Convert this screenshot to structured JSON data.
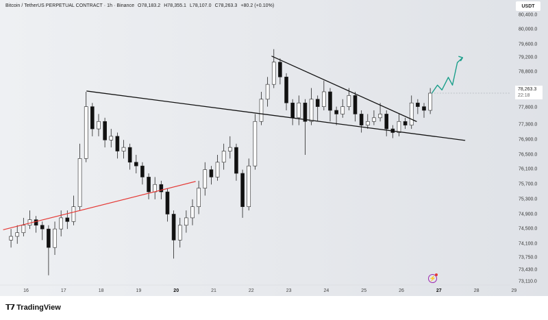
{
  "header": {
    "symbol": "Bitcoin / TetherUS PERPETUAL CONTRACT · 1h · Binance",
    "open": "O78,183.2",
    "high": "H78,355.1",
    "low": "L78,107.0",
    "close": "C78,263.3",
    "change": "+80.2 (+0.10%)"
  },
  "currency": "USDT",
  "last_price": {
    "value": "78,263.3",
    "countdown": "22:18"
  },
  "footer": {
    "logo_mark": "TV",
    "logo_text": "TradingView"
  },
  "icons": {
    "alert": "lightning-icon"
  },
  "colors": {
    "up_candle": "#ffffff",
    "down_candle": "#111111",
    "trendline": "#111111",
    "support_line": "#e53935",
    "projection": "#1a9e8a",
    "alert": "#9c27b0"
  },
  "chart_data": {
    "type": "candlestick",
    "interval": "1h",
    "xaxis": {
      "ticks": [
        "16",
        "17",
        "18",
        "19",
        "20",
        "21",
        "22",
        "23",
        "24",
        "25",
        "26",
        "27",
        "28",
        "29"
      ],
      "bold": [
        "20",
        "27"
      ],
      "range_days": [
        15.4,
        29.8
      ]
    },
    "yaxis": {
      "ticks": [
        "80,400.0",
        "80,000.0",
        "79,600.0",
        "79,200.0",
        "78,800.0",
        "77,800.0",
        "77,300.0",
        "76,900.0",
        "76,500.0",
        "76,100.0",
        "75,700.0",
        "75,300.0",
        "74,900.0",
        "74,500.0",
        "74,100.0",
        "73,750.0",
        "73,430.0",
        "73,110.0"
      ],
      "range": [
        72900,
        80800
      ]
    },
    "grid": false,
    "candles_start_day": 15.6,
    "candles_step_days": 0.1667,
    "candles_ohlc": [
      [
        74300,
        74600,
        74100,
        74400
      ],
      [
        74400,
        74700,
        74200,
        74500
      ],
      [
        74500,
        74900,
        74400,
        74700
      ],
      [
        74700,
        75100,
        74600,
        74850
      ],
      [
        74850,
        74950,
        74500,
        74700
      ],
      [
        74700,
        74800,
        74300,
        74600
      ],
      [
        74600,
        74700,
        73350,
        74100
      ],
      [
        74100,
        74800,
        73900,
        74600
      ],
      [
        74600,
        75100,
        74400,
        74900
      ],
      [
        74900,
        75100,
        74600,
        74800
      ],
      [
        74800,
        75500,
        74700,
        75200
      ],
      [
        75200,
        76900,
        75100,
        76500
      ],
      [
        76500,
        78300,
        76400,
        77900
      ],
      [
        77900,
        78000,
        77100,
        77300
      ],
      [
        77300,
        77700,
        77100,
        77500
      ],
      [
        77500,
        77600,
        76800,
        77000
      ],
      [
        77000,
        77300,
        76800,
        77100
      ],
      [
        77100,
        77200,
        76500,
        76700
      ],
      [
        76700,
        77000,
        76500,
        76800
      ],
      [
        76800,
        76900,
        76200,
        76400
      ],
      [
        76400,
        76600,
        76100,
        76300
      ],
      [
        76300,
        76400,
        75800,
        76000
      ],
      [
        76000,
        76100,
        75400,
        75600
      ],
      [
        75600,
        76000,
        75400,
        75800
      ],
      [
        75800,
        75900,
        75400,
        75600
      ],
      [
        75600,
        75700,
        74800,
        75000
      ],
      [
        75000,
        75100,
        73800,
        74300
      ],
      [
        74300,
        74900,
        74100,
        74700
      ],
      [
        74700,
        75100,
        74500,
        74900
      ],
      [
        74900,
        75400,
        74700,
        75200
      ],
      [
        75200,
        75900,
        75000,
        75700
      ],
      [
        75700,
        76400,
        75500,
        76200
      ],
      [
        76200,
        76300,
        75800,
        76000
      ],
      [
        76000,
        76600,
        75900,
        76400
      ],
      [
        76400,
        76900,
        76200,
        76700
      ],
      [
        76700,
        77100,
        76500,
        76800
      ],
      [
        76800,
        76900,
        75900,
        76100
      ],
      [
        76100,
        76200,
        74900,
        75200
      ],
      [
        75200,
        76500,
        75100,
        76300
      ],
      [
        76300,
        77700,
        76200,
        77500
      ],
      [
        77500,
        78300,
        77400,
        78100
      ],
      [
        78100,
        78700,
        77900,
        78500
      ],
      [
        78500,
        79450,
        78400,
        79100
      ],
      [
        79100,
        79200,
        78500,
        78700
      ],
      [
        78700,
        78800,
        77800,
        78000
      ],
      [
        78000,
        78100,
        77400,
        77600
      ],
      [
        77600,
        78200,
        77400,
        78000
      ],
      [
        78000,
        78100,
        76600,
        77500
      ],
      [
        77500,
        78400,
        77400,
        78100
      ],
      [
        78100,
        78200,
        77500,
        77900
      ],
      [
        77900,
        78600,
        77800,
        78300
      ],
      [
        78300,
        78400,
        77500,
        77800
      ],
      [
        77800,
        77900,
        77400,
        77700
      ],
      [
        77700,
        78100,
        77600,
        77900
      ],
      [
        77900,
        78400,
        77800,
        78200
      ],
      [
        78200,
        78300,
        77500,
        77700
      ],
      [
        77700,
        77800,
        77200,
        77400
      ],
      [
        77400,
        77700,
        77300,
        77500
      ],
      [
        77500,
        77800,
        77400,
        77600
      ],
      [
        77600,
        78000,
        77500,
        77700
      ],
      [
        77700,
        77800,
        77100,
        77300
      ],
      [
        77300,
        77400,
        77050,
        77200
      ],
      [
        77200,
        77700,
        77100,
        77500
      ],
      [
        77500,
        77600,
        77300,
        77400
      ],
      [
        77400,
        78200,
        77300,
        78000
      ],
      [
        78000,
        78100,
        77700,
        77900
      ],
      [
        77900,
        78000,
        77600,
        77800
      ],
      [
        77800,
        78400,
        77700,
        78263
      ]
    ],
    "drawings": {
      "support_trendline": [
        [
          17.62,
          78320
        ],
        [
          27.69,
          76990
        ]
      ],
      "wedge_upper_line": [
        [
          22.55,
          79260
        ],
        [
          26.4,
          77500
        ]
      ],
      "red_trendline": [
        [
          15.4,
          74580
        ],
        [
          20.51,
          75880
        ]
      ],
      "projection_arrow": [
        [
          26.81,
          78260
        ],
        [
          26.96,
          78480
        ],
        [
          27.08,
          78350
        ],
        [
          27.25,
          78690
        ],
        [
          27.36,
          78480
        ],
        [
          27.49,
          79090
        ],
        [
          27.63,
          79220
        ]
      ]
    }
  }
}
